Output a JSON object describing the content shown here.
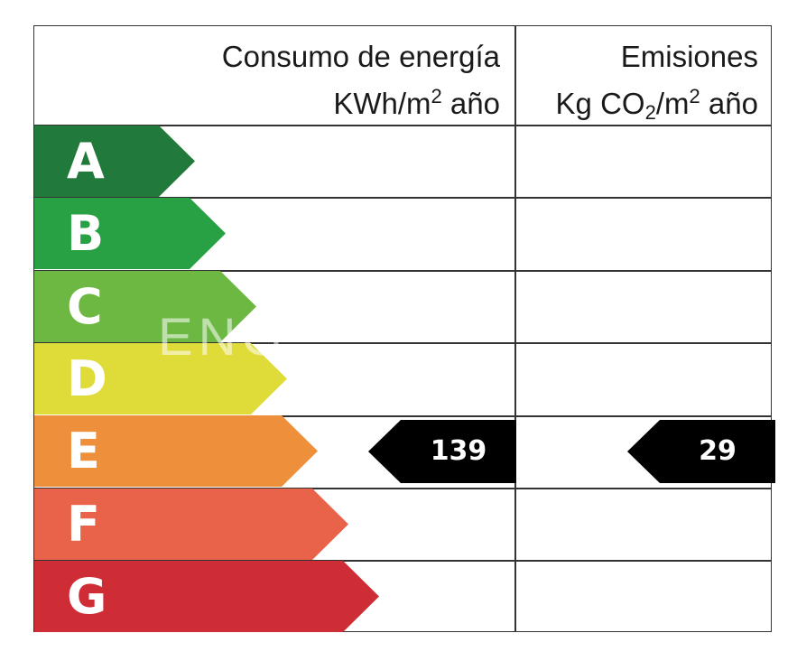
{
  "header": {
    "consumo_title": "Consumo de energía",
    "consumo_unit_pre": "KWh/m",
    "consumo_unit_sup": "2",
    "consumo_unit_post": " año",
    "emisiones_title": "Emisiones",
    "emisiones_unit_pre": "Kg CO",
    "emisiones_unit_sub": "2",
    "emisiones_unit_mid": "/m",
    "emisiones_unit_sup": "2",
    "emisiones_unit_post": " año"
  },
  "ratings": [
    {
      "letter": "A",
      "color": "#217a3c"
    },
    {
      "letter": "B",
      "color": "#27a144"
    },
    {
      "letter": "C",
      "color": "#6db843"
    },
    {
      "letter": "D",
      "color": "#dfdc3a"
    },
    {
      "letter": "E",
      "color": "#ee8f3b"
    },
    {
      "letter": "F",
      "color": "#e9634b"
    },
    {
      "letter": "G",
      "color": "#cf2d35"
    }
  ],
  "consumo_value": "139",
  "emisiones_value": "29",
  "selected_rating": "E",
  "watermark": "ENG"
}
